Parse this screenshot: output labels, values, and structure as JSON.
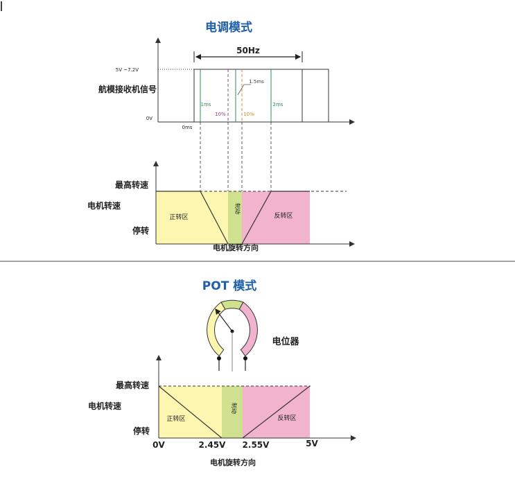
{
  "pwm_section": {
    "title": "电调模式",
    "period_label": "50Hz",
    "voltage_high_label": "5V ~7.2V",
    "voltage_low_label": "0V",
    "signal_label": "航模接收机信号",
    "time_zero_label": "0ms",
    "pulse_1ms_label": "1ms",
    "pulse_1_5ms_label": "1.5ms",
    "pulse_2ms_label": "2ms",
    "deadband_left_pct": "10%",
    "deadband_right_pct": "10%"
  },
  "speed_chart_1": {
    "y_top_label": "最高转速",
    "y_mid_label": "电机转速",
    "y_bottom_label": "停转",
    "forward_zone_label": "正转区",
    "brake_zone_label": "制动",
    "reverse_zone_label": "反转区",
    "x_axis_label": "电机旋转方向"
  },
  "pot_section": {
    "title": "POT 模式",
    "pot_label": "电位器"
  },
  "speed_chart_2": {
    "y_top_label": "最高转速",
    "y_mid_label": "电机转速",
    "y_bottom_label": "停转",
    "forward_zone_label": "正转区",
    "brake_zone_label": "制动",
    "reverse_zone_label": "反转区",
    "x_axis_label": "电机旋转方向",
    "tick_0v": "0V",
    "tick_2_45v": "2.45V",
    "tick_2_55v": "2.55V",
    "tick_5v": "5V"
  },
  "colors": {
    "title_blue": "#1f5fa8",
    "forward_yellow": "#fdf6b0",
    "brake_green": "#cfe08e",
    "reverse_pink": "#f2b3cf",
    "pulse_teal": "#2e8b57",
    "pulse_purple": "#9b3c8c",
    "pulse_orange": "#e08a2a"
  }
}
